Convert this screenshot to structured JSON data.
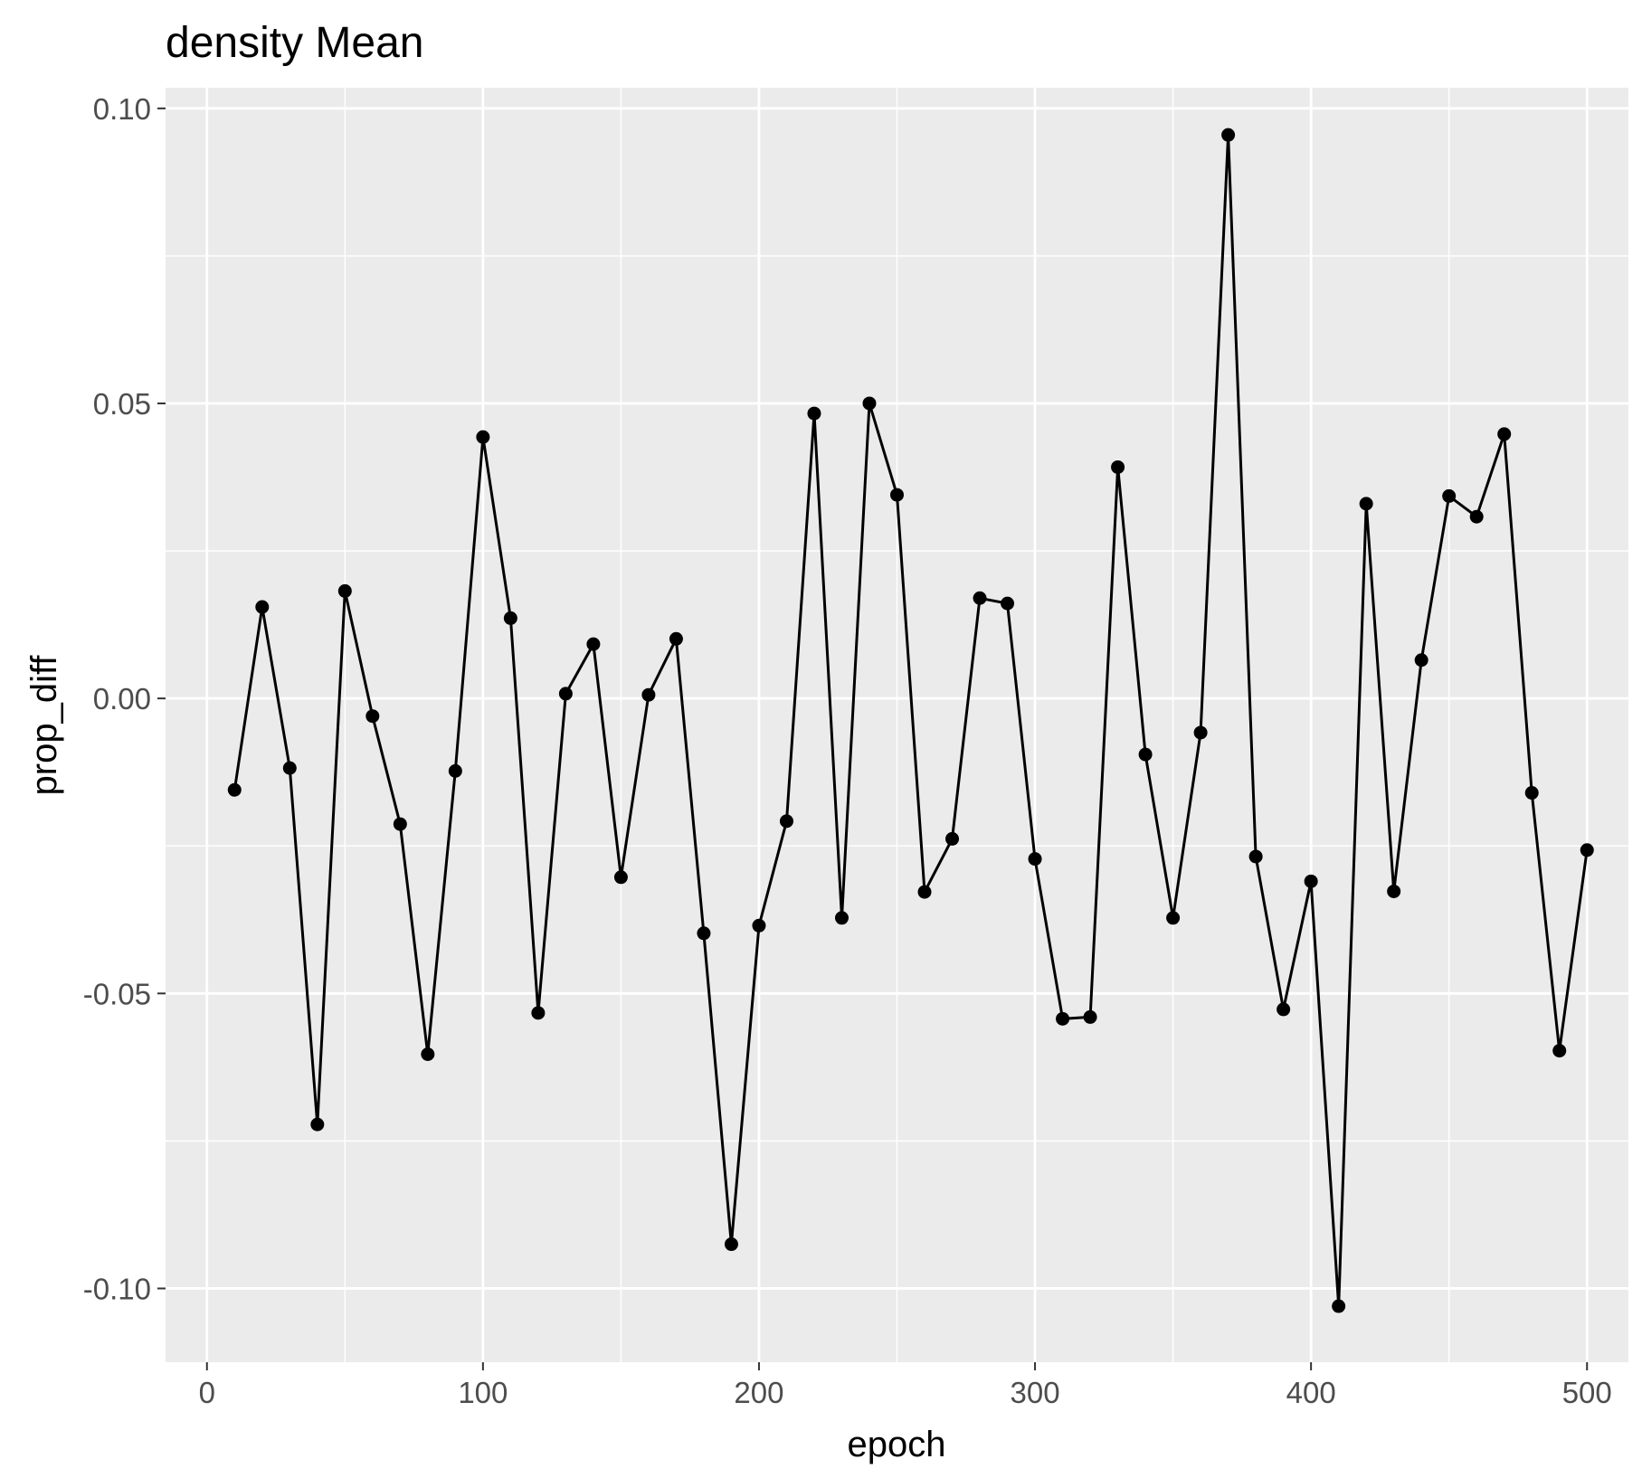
{
  "chart_data": {
    "type": "line",
    "title": "density Mean",
    "xlabel": "epoch",
    "ylabel": "prop_diff",
    "xlim": [
      -15,
      515
    ],
    "ylim": [
      -0.1125,
      0.1035
    ],
    "x_ticks": [
      0,
      100,
      200,
      300,
      400,
      500
    ],
    "x_tick_labels": [
      "0",
      "100",
      "200",
      "300",
      "400",
      "500"
    ],
    "x_minor_ticks": [
      50,
      150,
      250,
      350,
      450
    ],
    "y_ticks": [
      -0.1,
      -0.05,
      0.0,
      0.05,
      0.1
    ],
    "y_tick_labels": [
      "-0.10",
      "-0.05",
      "0.00",
      "0.05",
      "0.10"
    ],
    "y_minor_ticks": [
      -0.075,
      -0.025,
      0.025,
      0.075
    ],
    "grid": true,
    "colors": {
      "panel_background": "#ebebeb",
      "grid": "#ffffff",
      "series": "#000000"
    },
    "series": [
      {
        "x": [
          10,
          20,
          30,
          40,
          50,
          60,
          70,
          80,
          90,
          100,
          110,
          120,
          130,
          140,
          150,
          160,
          170,
          180,
          190,
          200,
          210,
          220,
          230,
          240,
          250,
          260,
          270,
          280,
          290,
          300,
          310,
          320,
          330,
          340,
          350,
          360,
          370,
          380,
          390,
          400,
          410,
          420,
          430,
          440,
          450,
          460,
          470,
          480,
          490,
          500
        ],
        "values": [
          -0.0155,
          0.0155,
          -0.0118,
          -0.0722,
          0.0182,
          -0.003,
          -0.0213,
          -0.0603,
          -0.0123,
          0.0443,
          0.0136,
          -0.0533,
          0.0008,
          0.0092,
          -0.0303,
          0.0006,
          0.0101,
          -0.0398,
          -0.0925,
          -0.0385,
          -0.0208,
          0.0483,
          -0.0372,
          0.05,
          0.0345,
          -0.0328,
          -0.0238,
          0.017,
          0.0161,
          -0.0272,
          -0.0543,
          -0.054,
          0.0392,
          -0.0095,
          -0.0372,
          -0.0058,
          0.0955,
          -0.0268,
          -0.0527,
          -0.031,
          -0.103,
          0.033,
          -0.0327,
          0.0065,
          0.0343,
          0.0308,
          0.0448,
          -0.016,
          -0.0597,
          -0.0257
        ]
      }
    ]
  }
}
